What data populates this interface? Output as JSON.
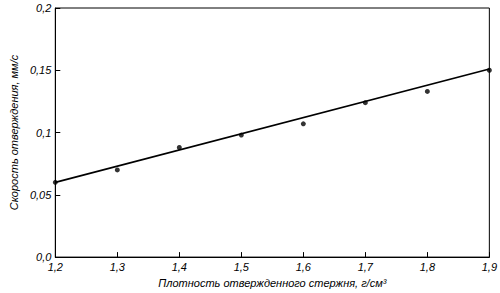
{
  "chart_data": {
    "type": "line",
    "x_label": "Плотность отвержденного стержня, г/см³",
    "y_label": "Скорость отверждения, мм/с",
    "xlim": [
      1.2,
      1.9
    ],
    "xticks": [
      {
        "value": 1.2,
        "label": "1,2"
      },
      {
        "value": 1.3,
        "label": "1,3"
      },
      {
        "value": 1.4,
        "label": "1,4"
      },
      {
        "value": 1.5,
        "label": "1,5"
      },
      {
        "value": 1.6,
        "label": "1,6"
      },
      {
        "value": 1.7,
        "label": "1,7"
      },
      {
        "value": 1.8,
        "label": "1,8"
      },
      {
        "value": 1.9,
        "label": "1,9"
      }
    ],
    "ylim": [
      0,
      0.2
    ],
    "yticks": [
      {
        "value": 0,
        "label": "0,0"
      },
      {
        "value": 0.05,
        "label": "0,05"
      },
      {
        "value": 0.1,
        "label": "0,1"
      },
      {
        "value": 0.15,
        "label": "0,15"
      },
      {
        "value": 0.2,
        "label": "0,2"
      }
    ],
    "grid": false,
    "series": [
      {
        "type": "line",
        "color": "#000000",
        "line_style": "solid",
        "x": [
          1.2,
          1.9
        ],
        "values": [
          0.06,
          0.151
        ]
      },
      {
        "type": "scatter",
        "color": "#000000",
        "marker": "circle",
        "x": [
          1.2,
          1.3,
          1.4,
          1.5,
          1.6,
          1.7,
          1.8,
          1.9
        ],
        "values": [
          0.06,
          0.07,
          0.088,
          0.098,
          0.107,
          0.124,
          0.133,
          0.15
        ]
      }
    ]
  }
}
